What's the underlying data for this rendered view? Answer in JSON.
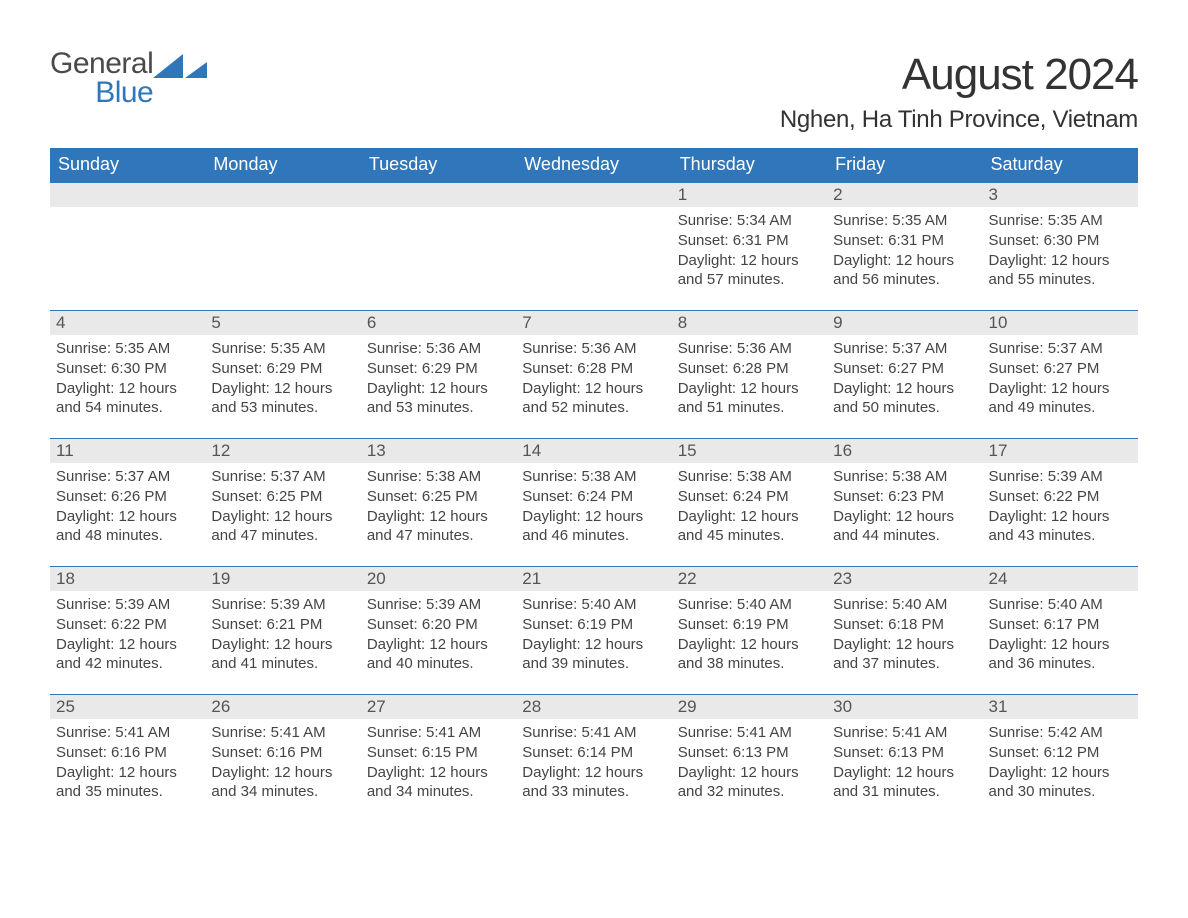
{
  "logo": {
    "general": "General",
    "blue": "Blue",
    "icon_color": "#2f76bb"
  },
  "title": "August 2024",
  "location": "Nghen, Ha Tinh Province, Vietnam",
  "colors": {
    "header_bg": "#2f76bb",
    "header_text": "#ffffff",
    "daynum_bg": "#e9e9e9",
    "row_border": "#2f76bb",
    "body_text": "#444444"
  },
  "weekdays": [
    "Sunday",
    "Monday",
    "Tuesday",
    "Wednesday",
    "Thursday",
    "Friday",
    "Saturday"
  ],
  "weeks": [
    [
      null,
      null,
      null,
      null,
      {
        "n": "1",
        "sr": "Sunrise: 5:34 AM",
        "ss": "Sunset: 6:31 PM",
        "dl": "Daylight: 12 hours and 57 minutes."
      },
      {
        "n": "2",
        "sr": "Sunrise: 5:35 AM",
        "ss": "Sunset: 6:31 PM",
        "dl": "Daylight: 12 hours and 56 minutes."
      },
      {
        "n": "3",
        "sr": "Sunrise: 5:35 AM",
        "ss": "Sunset: 6:30 PM",
        "dl": "Daylight: 12 hours and 55 minutes."
      }
    ],
    [
      {
        "n": "4",
        "sr": "Sunrise: 5:35 AM",
        "ss": "Sunset: 6:30 PM",
        "dl": "Daylight: 12 hours and 54 minutes."
      },
      {
        "n": "5",
        "sr": "Sunrise: 5:35 AM",
        "ss": "Sunset: 6:29 PM",
        "dl": "Daylight: 12 hours and 53 minutes."
      },
      {
        "n": "6",
        "sr": "Sunrise: 5:36 AM",
        "ss": "Sunset: 6:29 PM",
        "dl": "Daylight: 12 hours and 53 minutes."
      },
      {
        "n": "7",
        "sr": "Sunrise: 5:36 AM",
        "ss": "Sunset: 6:28 PM",
        "dl": "Daylight: 12 hours and 52 minutes."
      },
      {
        "n": "8",
        "sr": "Sunrise: 5:36 AM",
        "ss": "Sunset: 6:28 PM",
        "dl": "Daylight: 12 hours and 51 minutes."
      },
      {
        "n": "9",
        "sr": "Sunrise: 5:37 AM",
        "ss": "Sunset: 6:27 PM",
        "dl": "Daylight: 12 hours and 50 minutes."
      },
      {
        "n": "10",
        "sr": "Sunrise: 5:37 AM",
        "ss": "Sunset: 6:27 PM",
        "dl": "Daylight: 12 hours and 49 minutes."
      }
    ],
    [
      {
        "n": "11",
        "sr": "Sunrise: 5:37 AM",
        "ss": "Sunset: 6:26 PM",
        "dl": "Daylight: 12 hours and 48 minutes."
      },
      {
        "n": "12",
        "sr": "Sunrise: 5:37 AM",
        "ss": "Sunset: 6:25 PM",
        "dl": "Daylight: 12 hours and 47 minutes."
      },
      {
        "n": "13",
        "sr": "Sunrise: 5:38 AM",
        "ss": "Sunset: 6:25 PM",
        "dl": "Daylight: 12 hours and 47 minutes."
      },
      {
        "n": "14",
        "sr": "Sunrise: 5:38 AM",
        "ss": "Sunset: 6:24 PM",
        "dl": "Daylight: 12 hours and 46 minutes."
      },
      {
        "n": "15",
        "sr": "Sunrise: 5:38 AM",
        "ss": "Sunset: 6:24 PM",
        "dl": "Daylight: 12 hours and 45 minutes."
      },
      {
        "n": "16",
        "sr": "Sunrise: 5:38 AM",
        "ss": "Sunset: 6:23 PM",
        "dl": "Daylight: 12 hours and 44 minutes."
      },
      {
        "n": "17",
        "sr": "Sunrise: 5:39 AM",
        "ss": "Sunset: 6:22 PM",
        "dl": "Daylight: 12 hours and 43 minutes."
      }
    ],
    [
      {
        "n": "18",
        "sr": "Sunrise: 5:39 AM",
        "ss": "Sunset: 6:22 PM",
        "dl": "Daylight: 12 hours and 42 minutes."
      },
      {
        "n": "19",
        "sr": "Sunrise: 5:39 AM",
        "ss": "Sunset: 6:21 PM",
        "dl": "Daylight: 12 hours and 41 minutes."
      },
      {
        "n": "20",
        "sr": "Sunrise: 5:39 AM",
        "ss": "Sunset: 6:20 PM",
        "dl": "Daylight: 12 hours and 40 minutes."
      },
      {
        "n": "21",
        "sr": "Sunrise: 5:40 AM",
        "ss": "Sunset: 6:19 PM",
        "dl": "Daylight: 12 hours and 39 minutes."
      },
      {
        "n": "22",
        "sr": "Sunrise: 5:40 AM",
        "ss": "Sunset: 6:19 PM",
        "dl": "Daylight: 12 hours and 38 minutes."
      },
      {
        "n": "23",
        "sr": "Sunrise: 5:40 AM",
        "ss": "Sunset: 6:18 PM",
        "dl": "Daylight: 12 hours and 37 minutes."
      },
      {
        "n": "24",
        "sr": "Sunrise: 5:40 AM",
        "ss": "Sunset: 6:17 PM",
        "dl": "Daylight: 12 hours and 36 minutes."
      }
    ],
    [
      {
        "n": "25",
        "sr": "Sunrise: 5:41 AM",
        "ss": "Sunset: 6:16 PM",
        "dl": "Daylight: 12 hours and 35 minutes."
      },
      {
        "n": "26",
        "sr": "Sunrise: 5:41 AM",
        "ss": "Sunset: 6:16 PM",
        "dl": "Daylight: 12 hours and 34 minutes."
      },
      {
        "n": "27",
        "sr": "Sunrise: 5:41 AM",
        "ss": "Sunset: 6:15 PM",
        "dl": "Daylight: 12 hours and 34 minutes."
      },
      {
        "n": "28",
        "sr": "Sunrise: 5:41 AM",
        "ss": "Sunset: 6:14 PM",
        "dl": "Daylight: 12 hours and 33 minutes."
      },
      {
        "n": "29",
        "sr": "Sunrise: 5:41 AM",
        "ss": "Sunset: 6:13 PM",
        "dl": "Daylight: 12 hours and 32 minutes."
      },
      {
        "n": "30",
        "sr": "Sunrise: 5:41 AM",
        "ss": "Sunset: 6:13 PM",
        "dl": "Daylight: 12 hours and 31 minutes."
      },
      {
        "n": "31",
        "sr": "Sunrise: 5:42 AM",
        "ss": "Sunset: 6:12 PM",
        "dl": "Daylight: 12 hours and 30 minutes."
      }
    ]
  ]
}
